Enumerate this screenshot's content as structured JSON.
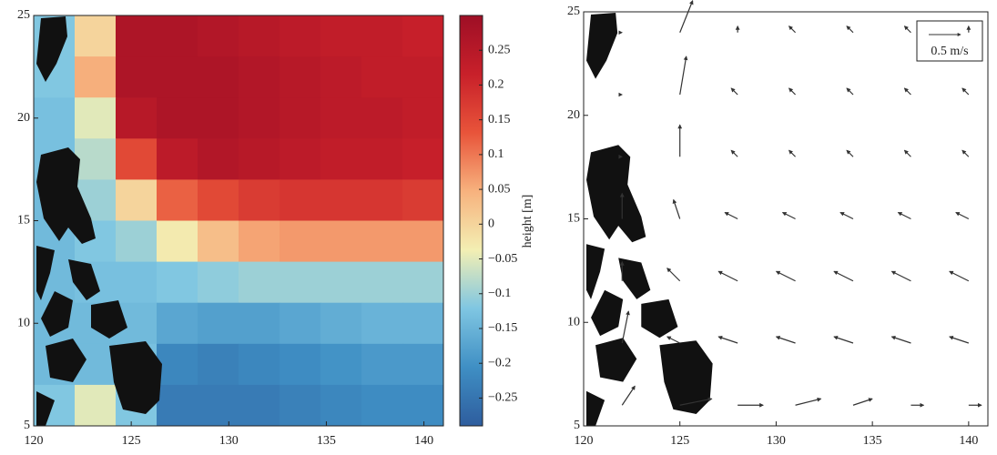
{
  "chart_data": [
    {
      "type": "heatmap",
      "xlim": [
        120,
        141
      ],
      "ylim": [
        5,
        25
      ],
      "xticks": [
        120,
        125,
        130,
        135,
        140
      ],
      "yticks": [
        5,
        10,
        15,
        20,
        25
      ],
      "colorbar_label": "height [m]",
      "clim": [
        -0.29,
        0.3
      ],
      "colormap": [
        "#2e5d9e",
        "#3f8fc4",
        "#7fc6e2",
        "#f3efb3",
        "#f7b27e",
        "#e8543a",
        "#c8202a",
        "#9e0f26"
      ],
      "cticks": [
        {
          "value": -0.25,
          "label": "−0.25"
        },
        {
          "value": -0.2,
          "label": "−0.2"
        },
        {
          "value": -0.15,
          "label": "−0.15"
        },
        {
          "value": -0.1,
          "label": "−0.1"
        },
        {
          "value": -0.05,
          "label": "−0.05"
        },
        0,
        0.05,
        0.1,
        0.15,
        0.2,
        0.25
      ],
      "values": [
        [
          -0.12,
          0.0,
          0.27,
          0.27,
          0.26,
          0.25,
          0.24,
          0.23,
          0.23,
          0.22
        ],
        [
          -0.12,
          0.05,
          0.27,
          0.27,
          0.27,
          0.26,
          0.25,
          0.24,
          0.23,
          0.23
        ],
        [
          -0.13,
          -0.05,
          0.25,
          0.27,
          0.27,
          0.26,
          0.25,
          0.24,
          0.24,
          0.23
        ],
        [
          -0.13,
          -0.08,
          0.15,
          0.24,
          0.26,
          0.25,
          0.24,
          0.23,
          0.23,
          0.22
        ],
        [
          -0.14,
          -0.1,
          0.0,
          0.12,
          0.15,
          0.17,
          0.18,
          0.18,
          0.18,
          0.17
        ],
        [
          -0.14,
          -0.12,
          -0.1,
          -0.03,
          0.03,
          0.06,
          0.07,
          0.07,
          0.07,
          0.07
        ],
        [
          -0.14,
          -0.13,
          -0.13,
          -0.12,
          -0.11,
          -0.1,
          -0.1,
          -0.1,
          -0.1,
          -0.1
        ],
        [
          -0.14,
          -0.14,
          -0.14,
          -0.17,
          -0.18,
          -0.18,
          -0.17,
          -0.16,
          -0.15,
          -0.15
        ],
        [
          -0.14,
          -0.14,
          -0.13,
          -0.22,
          -0.23,
          -0.22,
          -0.21,
          -0.2,
          -0.19,
          -0.19
        ],
        [
          -0.12,
          -0.05,
          -0.12,
          -0.24,
          -0.24,
          -0.24,
          -0.23,
          -0.22,
          -0.21,
          -0.21
        ]
      ]
    },
    {
      "type": "quiver",
      "xlim": [
        120,
        141
      ],
      "ylim": [
        5,
        25
      ],
      "xticks": [
        120,
        125,
        130,
        135,
        140
      ],
      "yticks": [
        5,
        10,
        15,
        20,
        25
      ],
      "color": "#333333",
      "key": {
        "value": 0.5,
        "label": "0.5 m/s"
      },
      "x": [
        122,
        125,
        128,
        131,
        134,
        137,
        140
      ],
      "y": [
        6,
        9,
        12,
        15,
        18,
        21,
        24
      ],
      "u": [
        [
          0.2,
          0.5,
          0.4,
          0.4,
          0.3,
          0.2,
          0.2
        ],
        [
          0.1,
          -0.2,
          -0.3,
          -0.3,
          -0.3,
          -0.3,
          -0.3
        ],
        [
          0.0,
          -0.2,
          -0.3,
          -0.3,
          -0.3,
          -0.3,
          -0.3
        ],
        [
          0.0,
          -0.1,
          -0.2,
          -0.2,
          -0.2,
          -0.2,
          -0.2
        ],
        [
          0.0,
          0.0,
          -0.1,
          -0.1,
          -0.1,
          -0.1,
          -0.1
        ],
        [
          0.0,
          0.1,
          -0.1,
          -0.1,
          -0.1,
          -0.1,
          -0.1
        ],
        [
          0.0,
          0.2,
          0.0,
          -0.1,
          -0.1,
          -0.1,
          0.0
        ]
      ],
      "v": [
        [
          0.3,
          0.1,
          0.0,
          0.1,
          0.1,
          0.0,
          0.0
        ],
        [
          0.5,
          0.1,
          0.1,
          0.1,
          0.1,
          0.1,
          0.1
        ],
        [
          0.3,
          0.2,
          0.15,
          0.15,
          0.15,
          0.15,
          0.15
        ],
        [
          0.4,
          0.3,
          0.1,
          0.1,
          0.1,
          0.1,
          0.1
        ],
        [
          0.0,
          0.5,
          0.1,
          0.1,
          0.1,
          0.1,
          0.1
        ],
        [
          0.0,
          0.6,
          0.1,
          0.1,
          0.1,
          0.1,
          0.1
        ],
        [
          0.0,
          0.5,
          0.1,
          0.1,
          0.1,
          0.1,
          0.1
        ]
      ]
    }
  ]
}
